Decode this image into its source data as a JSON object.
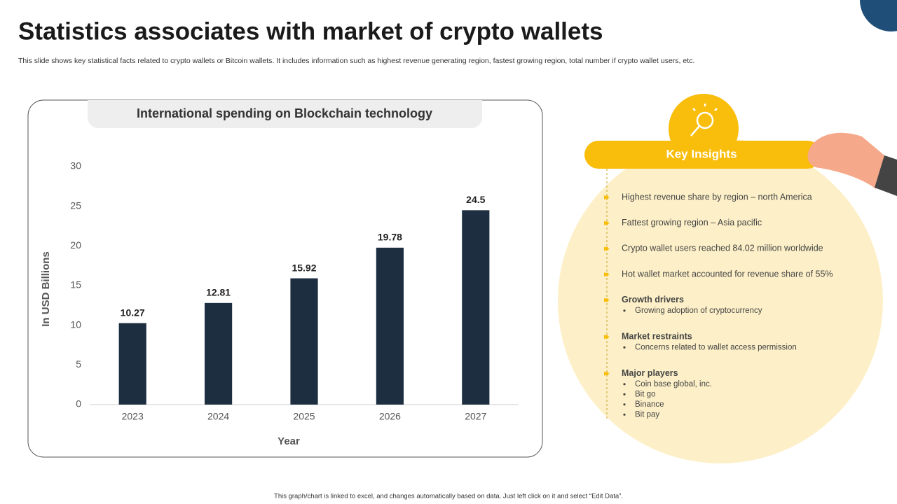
{
  "title": "Statistics associates with market of crypto wallets",
  "subtitle": "This slide shows key statistical facts related to crypto wallets or Bitcoin  wallets. It includes information such as highest revenue generating region, fastest growing region, total number if crypto wallet users, etc.",
  "footer": "This graph/chart is linked to excel, and changes automatically based on data. Just left click on it and select “Edit Data”.",
  "chart_data": {
    "type": "bar",
    "title": "International spending on Blockchain technology",
    "categories": [
      "2023",
      "2024",
      "2025",
      "2026",
      "2027"
    ],
    "values": [
      10.27,
      12.81,
      15.92,
      19.78,
      24.5
    ],
    "color": "#1c2e40",
    "ylim": [
      0,
      30
    ],
    "yticks": [
      0,
      5,
      10,
      15,
      20,
      25,
      30
    ],
    "ylabel": "In USD Billions",
    "xlabel": "Year",
    "grid": false
  },
  "insights": {
    "title": "Key Insights",
    "items": [
      {
        "text": "Highest revenue  share by region – north America"
      },
      {
        "text": "Fattest growing region  – Asia pacific"
      },
      {
        "text": "Crypto wallet users reached 84.02 million worldwide"
      },
      {
        "text": "Hot wallet market accounted for revenue  share of 55%"
      },
      {
        "heading": "Growth drivers",
        "bullets": [
          "Growing adoption of cryptocurrency"
        ]
      },
      {
        "heading": "Market restraints",
        "bullets": [
          "Concerns related to wallet access permission"
        ]
      },
      {
        "heading": "Major players",
        "bullets": [
          "Coin base global, inc.",
          "Bit go",
          "Binance",
          "Bit pay"
        ]
      }
    ]
  }
}
